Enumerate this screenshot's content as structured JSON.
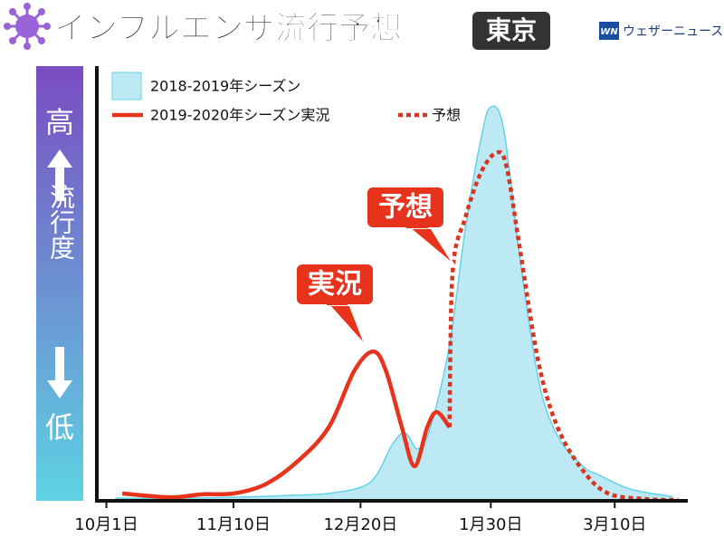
{
  "header": {
    "logo_mark": "WN",
    "logo": "ウェザーニュース"
  },
  "chart_data": {
    "type": "line",
    "title": "インフルエンザ流行予想",
    "region": "東京",
    "y_label_high": "高",
    "ylabel": "流行度",
    "y_label_low": "低",
    "xlim": [
      -3,
      183
    ],
    "ylim": [
      0,
      100
    ],
    "xticks": [
      {
        "value": 0,
        "label": "10月1日"
      },
      {
        "value": 40,
        "label": "11月10日"
      },
      {
        "value": 80,
        "label": "12月20日"
      },
      {
        "value": 121,
        "label": "1月30日"
      },
      {
        "value": 160,
        "label": "3月10日"
      }
    ],
    "series": [
      {
        "name": "2018-2019年シーズン",
        "style": "area",
        "color": "#bde9f5",
        "edge_color": "#62d2e8",
        "x": [
          3,
          20,
          40,
          60,
          70,
          80,
          85,
          90,
          94,
          98,
          102,
          108,
          113,
          118,
          121,
          125,
          130,
          136,
          142,
          150,
          155,
          165,
          178
        ],
        "values": [
          0.6,
          0.6,
          0.8,
          1.3,
          1.7,
          3.1,
          5.9,
          13,
          15.7,
          12,
          17,
          36,
          63,
          84,
          91,
          86,
          57,
          28,
          15,
          8,
          6,
          2.7,
          1.0
        ]
      },
      {
        "name": "2019-2020年シーズン実況",
        "style": "solid",
        "color": "#e8331c",
        "x": [
          5,
          20,
          30,
          40,
          50,
          60,
          70,
          78,
          84,
          88,
          93,
          97,
          101,
          104,
          108
        ],
        "values": [
          1.7,
          0.8,
          1.5,
          1.7,
          3.8,
          9,
          17,
          30,
          34.5,
          30,
          17,
          8,
          17,
          20.5,
          17
        ]
      },
      {
        "name": "予想",
        "style": "dotted",
        "color": "#d8341f",
        "x": [
          108,
          109,
          113,
          118,
          123,
          126,
          130,
          136,
          142,
          150,
          158,
          170,
          180
        ],
        "values": [
          17,
          53,
          65.5,
          76,
          80.5,
          77,
          59,
          32,
          17,
          7,
          1.7,
          0.4,
          0.2
        ]
      }
    ],
    "annotations": [
      {
        "text": "実況"
      },
      {
        "text": "予想"
      }
    ]
  }
}
